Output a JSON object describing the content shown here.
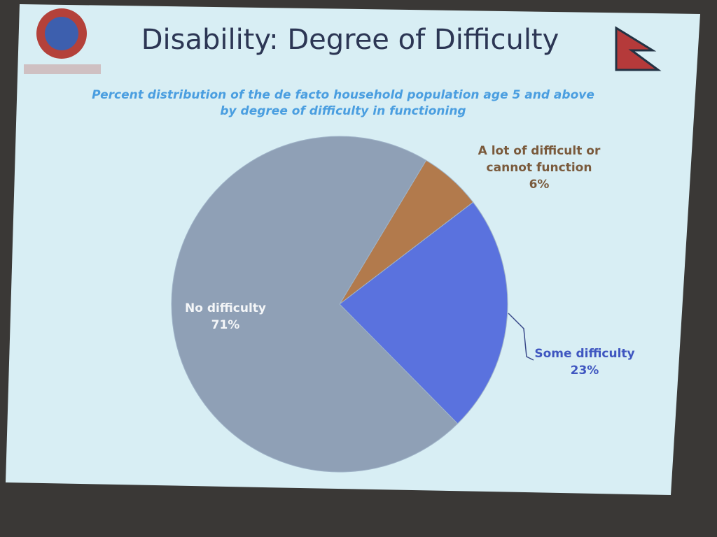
{
  "chart_data": {
    "type": "pie",
    "title": "Disability: Degree of Difficulty",
    "subtitle": "Percent distribution of the de facto household population age 5 and above by degree of difficulty in functioning",
    "categories": [
      "A lot of difficult or cannot function",
      "Some difficulty",
      "No difficulty"
    ],
    "values": [
      6,
      23,
      71
    ],
    "value_labels": [
      "6%",
      "23%",
      "71%"
    ],
    "colors": [
      "#b27a4c",
      "#5a72de",
      "#8fa0b6"
    ]
  }
}
